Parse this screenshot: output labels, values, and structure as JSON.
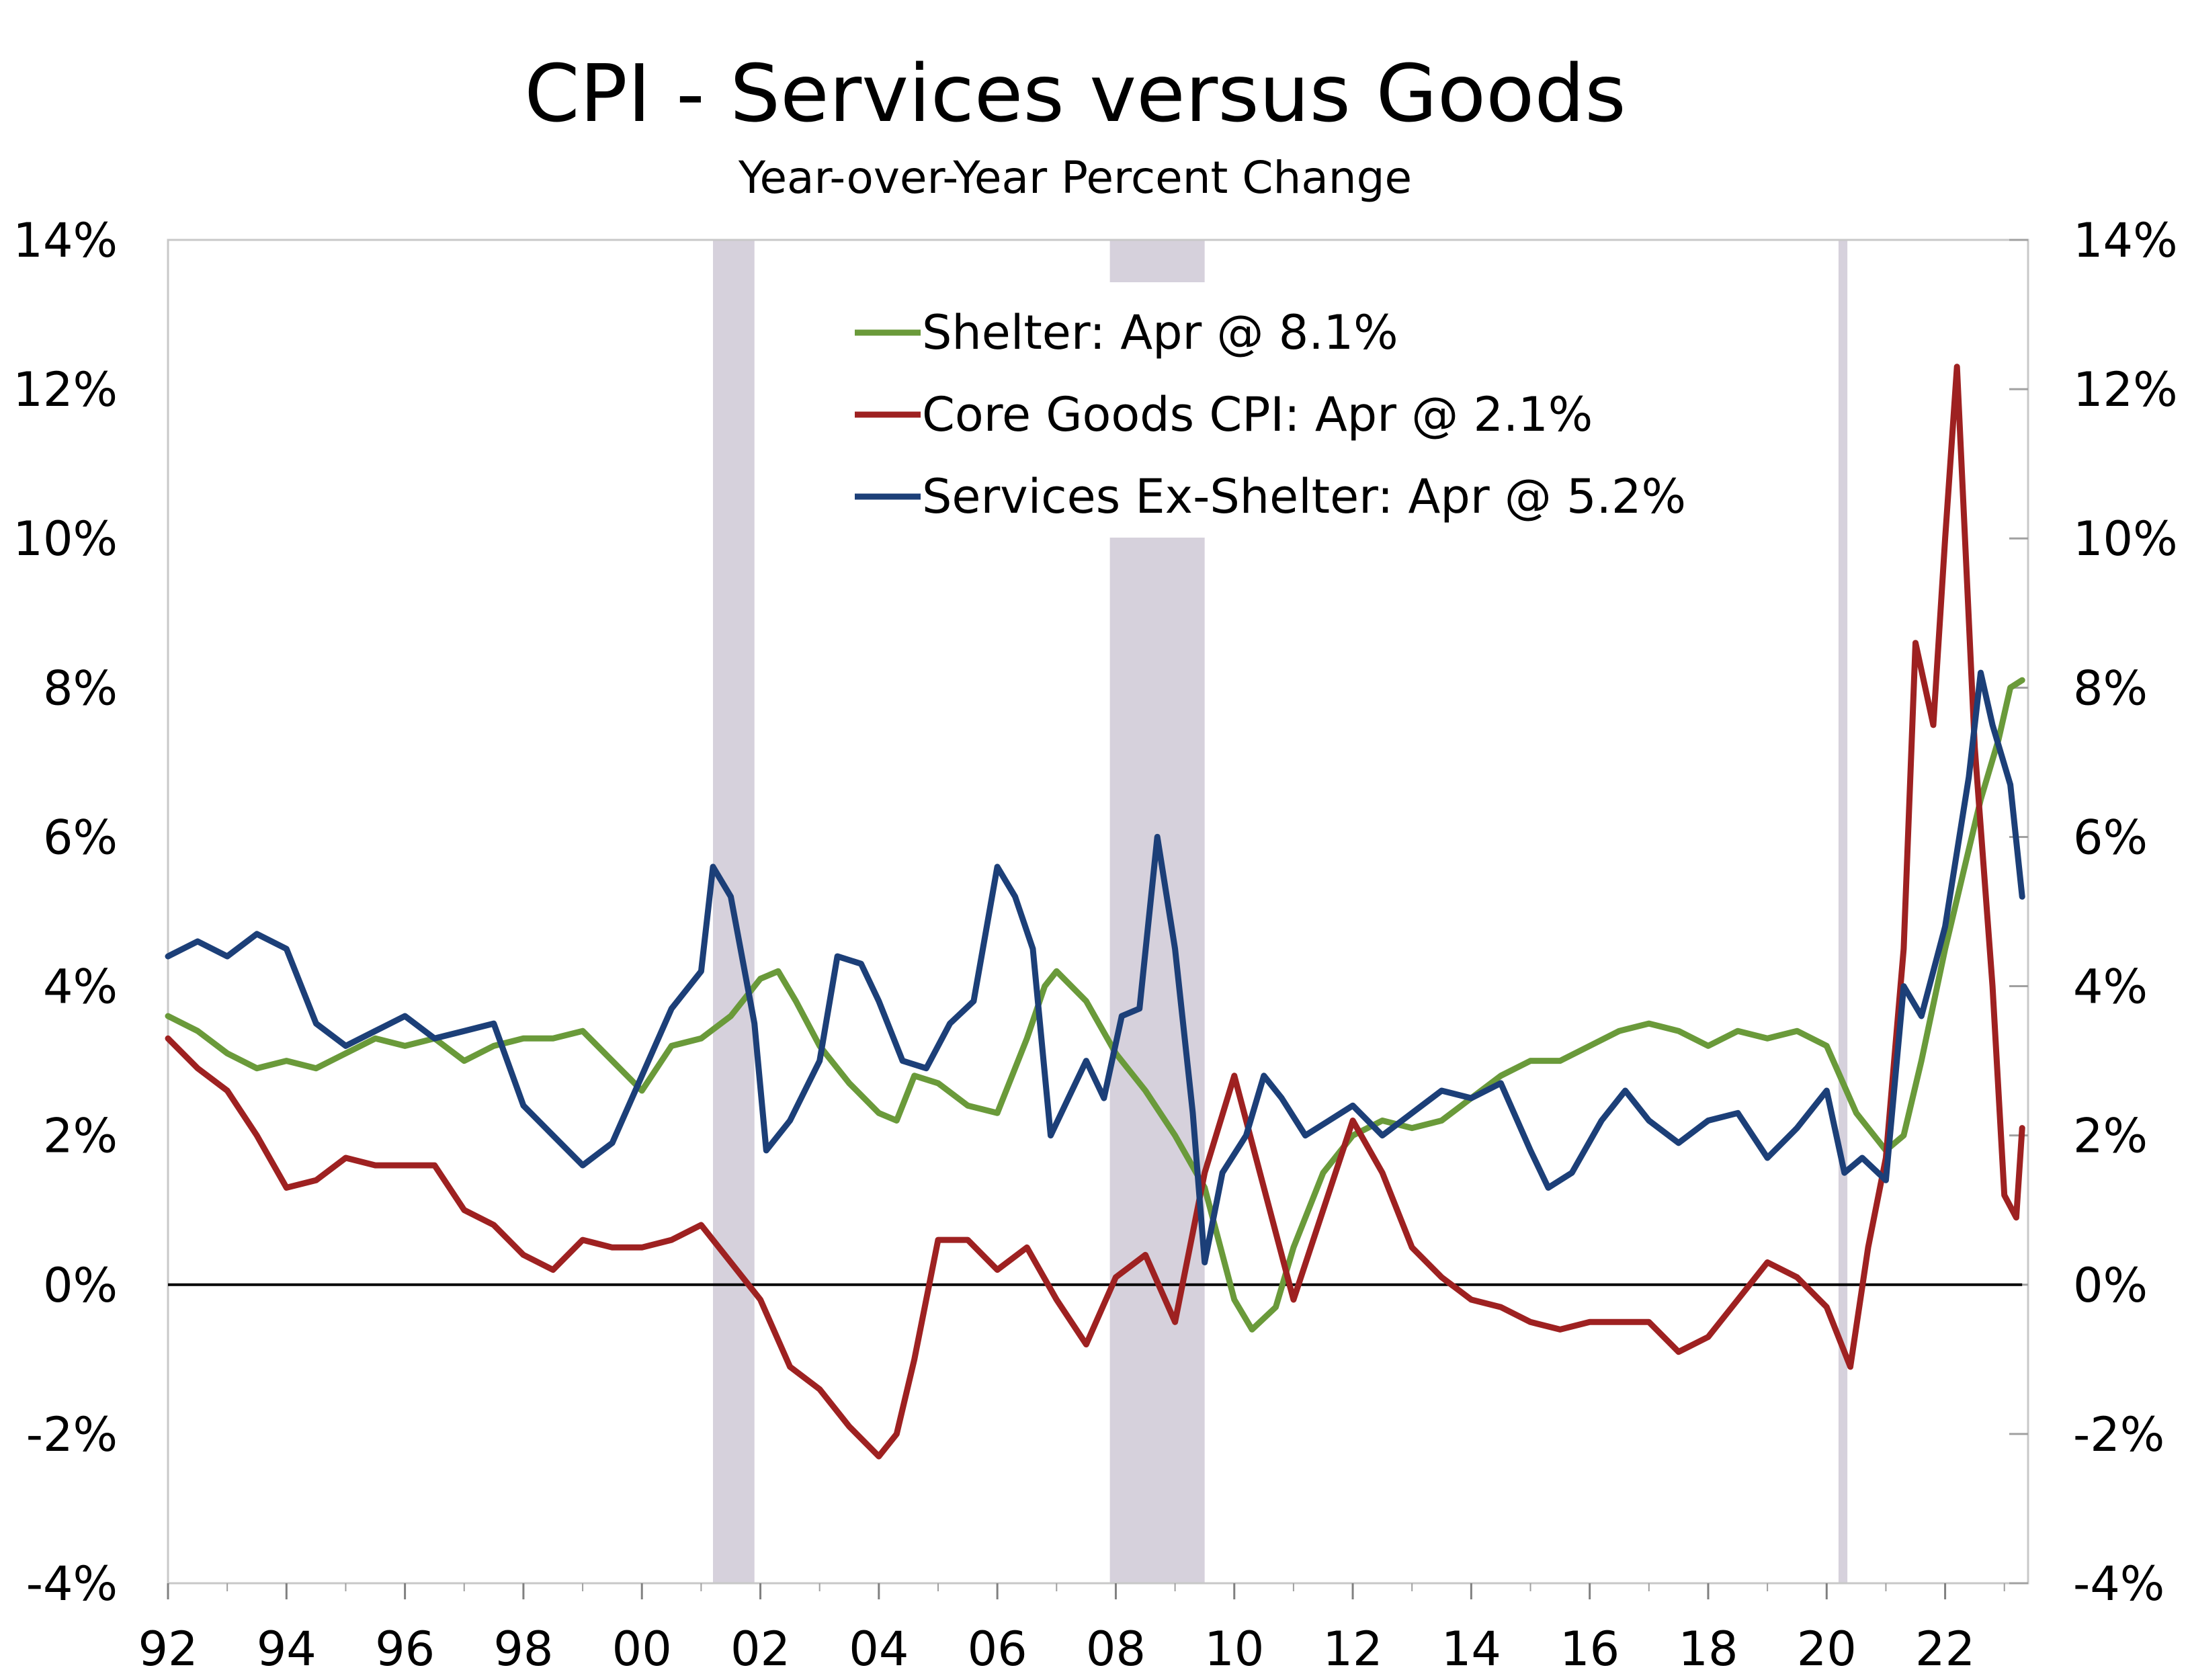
{
  "chart_data": {
    "type": "line",
    "title": "CPI - Services versus Goods",
    "subtitle": "Year-over-Year Percent Change",
    "ylim": [
      -4,
      14
    ],
    "xlim": [
      1992.0,
      2023.4
    ],
    "y_ticks": [
      "-4%",
      "-2%",
      "0%",
      "2%",
      "4%",
      "6%",
      "8%",
      "10%",
      "12%",
      "14%"
    ],
    "x_ticks": [
      "92",
      "94",
      "96",
      "98",
      "00",
      "02",
      "04",
      "06",
      "08",
      "10",
      "12",
      "14",
      "16",
      "18",
      "20",
      "22"
    ],
    "recessions": [
      [
        2001.2,
        2001.9
      ],
      [
        2007.9,
        2009.5
      ],
      [
        2020.2,
        2020.35
      ]
    ],
    "zero_line": true,
    "legend_position": "top-center",
    "series": [
      {
        "name": "Shelter: Apr @ 8.1%",
        "color": "#6a9a3a",
        "points": [
          [
            1992.0,
            3.6
          ],
          [
            1992.5,
            3.4
          ],
          [
            1993.0,
            3.1
          ],
          [
            1993.5,
            2.9
          ],
          [
            1994.0,
            3.0
          ],
          [
            1994.5,
            2.9
          ],
          [
            1995.0,
            3.1
          ],
          [
            1995.5,
            3.3
          ],
          [
            1996.0,
            3.2
          ],
          [
            1996.5,
            3.3
          ],
          [
            1997.0,
            3.0
          ],
          [
            1997.5,
            3.2
          ],
          [
            1998.0,
            3.3
          ],
          [
            1998.5,
            3.3
          ],
          [
            1999.0,
            3.4
          ],
          [
            1999.5,
            3.0
          ],
          [
            2000.0,
            2.6
          ],
          [
            2000.5,
            3.2
          ],
          [
            2001.0,
            3.3
          ],
          [
            2001.5,
            3.6
          ],
          [
            2002.0,
            4.1
          ],
          [
            2002.3,
            4.2
          ],
          [
            2002.6,
            3.8
          ],
          [
            2003.0,
            3.2
          ],
          [
            2003.5,
            2.7
          ],
          [
            2004.0,
            2.3
          ],
          [
            2004.3,
            2.2
          ],
          [
            2004.6,
            2.8
          ],
          [
            2005.0,
            2.7
          ],
          [
            2005.5,
            2.4
          ],
          [
            2006.0,
            2.3
          ],
          [
            2006.5,
            3.3
          ],
          [
            2006.8,
            4.0
          ],
          [
            2007.0,
            4.2
          ],
          [
            2007.5,
            3.8
          ],
          [
            2008.0,
            3.1
          ],
          [
            2008.5,
            2.6
          ],
          [
            2009.0,
            2.0
          ],
          [
            2009.5,
            1.3
          ],
          [
            2010.0,
            -0.2
          ],
          [
            2010.3,
            -0.6
          ],
          [
            2010.7,
            -0.3
          ],
          [
            2011.0,
            0.5
          ],
          [
            2011.5,
            1.5
          ],
          [
            2012.0,
            2.0
          ],
          [
            2012.5,
            2.2
          ],
          [
            2013.0,
            2.1
          ],
          [
            2013.5,
            2.2
          ],
          [
            2014.0,
            2.5
          ],
          [
            2014.5,
            2.8
          ],
          [
            2015.0,
            3.0
          ],
          [
            2015.5,
            3.0
          ],
          [
            2016.0,
            3.2
          ],
          [
            2016.5,
            3.4
          ],
          [
            2017.0,
            3.5
          ],
          [
            2017.5,
            3.4
          ],
          [
            2018.0,
            3.2
          ],
          [
            2018.5,
            3.4
          ],
          [
            2019.0,
            3.3
          ],
          [
            2019.5,
            3.4
          ],
          [
            2020.0,
            3.2
          ],
          [
            2020.5,
            2.3
          ],
          [
            2021.0,
            1.8
          ],
          [
            2021.3,
            2.0
          ],
          [
            2021.6,
            3.0
          ],
          [
            2022.0,
            4.5
          ],
          [
            2022.3,
            5.5
          ],
          [
            2022.6,
            6.5
          ],
          [
            2022.9,
            7.3
          ],
          [
            2023.1,
            8.0
          ],
          [
            2023.3,
            8.1
          ]
        ]
      },
      {
        "name": "Core Goods CPI: Apr @ 2.1%",
        "color": "#9e2121",
        "points": [
          [
            1992.0,
            3.3
          ],
          [
            1992.5,
            2.9
          ],
          [
            1993.0,
            2.6
          ],
          [
            1993.5,
            2.0
          ],
          [
            1994.0,
            1.3
          ],
          [
            1994.5,
            1.4
          ],
          [
            1995.0,
            1.7
          ],
          [
            1995.5,
            1.6
          ],
          [
            1996.0,
            1.6
          ],
          [
            1996.5,
            1.6
          ],
          [
            1997.0,
            1.0
          ],
          [
            1997.5,
            0.8
          ],
          [
            1998.0,
            0.4
          ],
          [
            1998.5,
            0.2
          ],
          [
            1999.0,
            0.6
          ],
          [
            1999.5,
            0.5
          ],
          [
            2000.0,
            0.5
          ],
          [
            2000.5,
            0.6
          ],
          [
            2001.0,
            0.8
          ],
          [
            2001.5,
            0.3
          ],
          [
            2002.0,
            -0.2
          ],
          [
            2002.5,
            -1.1
          ],
          [
            2003.0,
            -1.4
          ],
          [
            2003.5,
            -1.9
          ],
          [
            2004.0,
            -2.3
          ],
          [
            2004.3,
            -2.0
          ],
          [
            2004.6,
            -1.0
          ],
          [
            2005.0,
            0.6
          ],
          [
            2005.5,
            0.6
          ],
          [
            2006.0,
            0.2
          ],
          [
            2006.5,
            0.5
          ],
          [
            2007.0,
            -0.2
          ],
          [
            2007.5,
            -0.8
          ],
          [
            2008.0,
            0.1
          ],
          [
            2008.5,
            0.4
          ],
          [
            2009.0,
            -0.5
          ],
          [
            2009.5,
            1.5
          ],
          [
            2010.0,
            2.8
          ],
          [
            2010.5,
            1.3
          ],
          [
            2011.0,
            -0.2
          ],
          [
            2011.5,
            1.0
          ],
          [
            2012.0,
            2.2
          ],
          [
            2012.5,
            1.5
          ],
          [
            2013.0,
            0.5
          ],
          [
            2013.5,
            0.1
          ],
          [
            2014.0,
            -0.2
          ],
          [
            2014.5,
            -0.3
          ],
          [
            2015.0,
            -0.5
          ],
          [
            2015.5,
            -0.6
          ],
          [
            2016.0,
            -0.5
          ],
          [
            2016.5,
            -0.5
          ],
          [
            2017.0,
            -0.5
          ],
          [
            2017.5,
            -0.9
          ],
          [
            2018.0,
            -0.7
          ],
          [
            2018.5,
            -0.2
          ],
          [
            2019.0,
            0.3
          ],
          [
            2019.5,
            0.1
          ],
          [
            2020.0,
            -0.3
          ],
          [
            2020.4,
            -1.1
          ],
          [
            2020.7,
            0.5
          ],
          [
            2021.0,
            1.7
          ],
          [
            2021.3,
            4.5
          ],
          [
            2021.5,
            8.6
          ],
          [
            2021.8,
            7.5
          ],
          [
            2022.0,
            10.0
          ],
          [
            2022.2,
            12.3
          ],
          [
            2022.5,
            7.2
          ],
          [
            2022.8,
            4.0
          ],
          [
            2023.0,
            1.2
          ],
          [
            2023.2,
            0.9
          ],
          [
            2023.3,
            2.1
          ]
        ]
      },
      {
        "name": "Services Ex-Shelter: Apr @ 5.2%",
        "color": "#1c3f78",
        "points": [
          [
            1992.0,
            4.4
          ],
          [
            1992.5,
            4.6
          ],
          [
            1993.0,
            4.4
          ],
          [
            1993.5,
            4.7
          ],
          [
            1994.0,
            4.5
          ],
          [
            1994.5,
            3.5
          ],
          [
            1995.0,
            3.2
          ],
          [
            1995.5,
            3.4
          ],
          [
            1996.0,
            3.6
          ],
          [
            1996.5,
            3.3
          ],
          [
            1997.0,
            3.4
          ],
          [
            1997.5,
            3.5
          ],
          [
            1998.0,
            2.4
          ],
          [
            1998.5,
            2.0
          ],
          [
            1999.0,
            1.6
          ],
          [
            1999.5,
            1.9
          ],
          [
            2000.0,
            2.8
          ],
          [
            2000.5,
            3.7
          ],
          [
            2001.0,
            4.2
          ],
          [
            2001.2,
            5.6
          ],
          [
            2001.5,
            5.2
          ],
          [
            2001.9,
            3.5
          ],
          [
            2002.1,
            1.8
          ],
          [
            2002.5,
            2.2
          ],
          [
            2003.0,
            3.0
          ],
          [
            2003.3,
            4.4
          ],
          [
            2003.7,
            4.3
          ],
          [
            2004.0,
            3.8
          ],
          [
            2004.4,
            3.0
          ],
          [
            2004.8,
            2.9
          ],
          [
            2005.2,
            3.5
          ],
          [
            2005.6,
            3.8
          ],
          [
            2006.0,
            5.6
          ],
          [
            2006.3,
            5.2
          ],
          [
            2006.6,
            4.5
          ],
          [
            2006.9,
            2.0
          ],
          [
            2007.2,
            2.5
          ],
          [
            2007.5,
            3.0
          ],
          [
            2007.8,
            2.5
          ],
          [
            2008.1,
            3.6
          ],
          [
            2008.4,
            3.7
          ],
          [
            2008.7,
            6.0
          ],
          [
            2009.0,
            4.5
          ],
          [
            2009.3,
            2.3
          ],
          [
            2009.5,
            0.3
          ],
          [
            2009.8,
            1.5
          ],
          [
            2010.2,
            2.0
          ],
          [
            2010.5,
            2.8
          ],
          [
            2010.8,
            2.5
          ],
          [
            2011.2,
            2.0
          ],
          [
            2011.6,
            2.2
          ],
          [
            2012.0,
            2.4
          ],
          [
            2012.5,
            2.0
          ],
          [
            2013.0,
            2.3
          ],
          [
            2013.5,
            2.6
          ],
          [
            2014.0,
            2.5
          ],
          [
            2014.5,
            2.7
          ],
          [
            2015.0,
            1.8
          ],
          [
            2015.3,
            1.3
          ],
          [
            2015.7,
            1.5
          ],
          [
            2016.2,
            2.2
          ],
          [
            2016.6,
            2.6
          ],
          [
            2017.0,
            2.2
          ],
          [
            2017.5,
            1.9
          ],
          [
            2018.0,
            2.2
          ],
          [
            2018.5,
            2.3
          ],
          [
            2019.0,
            1.7
          ],
          [
            2019.5,
            2.1
          ],
          [
            2020.0,
            2.6
          ],
          [
            2020.3,
            1.5
          ],
          [
            2020.6,
            1.7
          ],
          [
            2021.0,
            1.4
          ],
          [
            2021.3,
            4.0
          ],
          [
            2021.6,
            3.6
          ],
          [
            2022.0,
            4.8
          ],
          [
            2022.4,
            6.8
          ],
          [
            2022.6,
            8.2
          ],
          [
            2022.8,
            7.5
          ],
          [
            2023.1,
            6.7
          ],
          [
            2023.3,
            5.2
          ]
        ]
      }
    ]
  }
}
